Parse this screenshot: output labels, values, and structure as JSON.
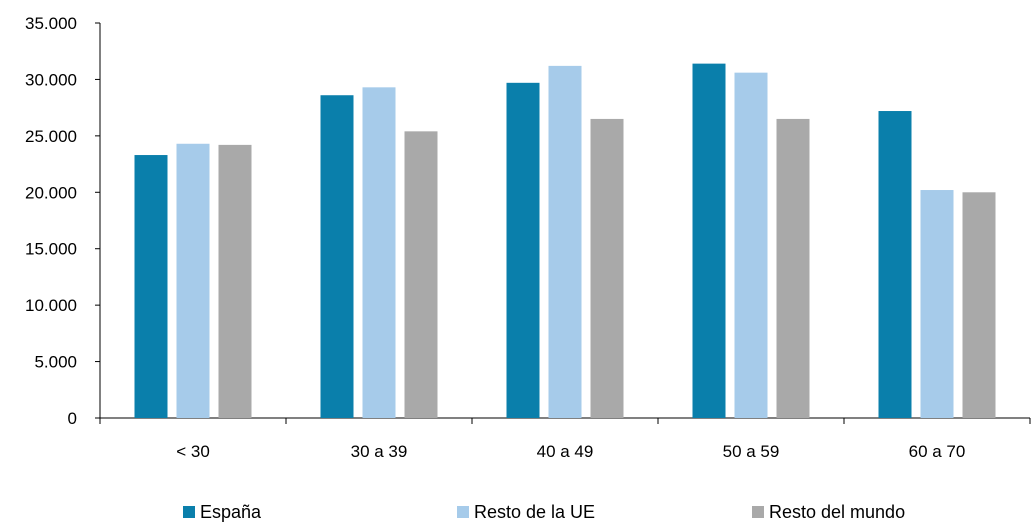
{
  "chart_data": {
    "type": "bar",
    "categories": [
      "< 30",
      "30 a 39",
      "40 a 49",
      "50 a 59",
      "60 a 70"
    ],
    "series": [
      {
        "name": "España",
        "color": "#0a7fab",
        "values": [
          23300,
          28600,
          29700,
          31400,
          27200
        ]
      },
      {
        "name": "Resto de la UE",
        "color": "#a6cbea",
        "values": [
          24300,
          29300,
          31200,
          30600,
          20200
        ]
      },
      {
        "name": "Resto del mundo",
        "color": "#a9a9a9",
        "values": [
          24200,
          25400,
          26500,
          26500,
          20000
        ]
      }
    ],
    "y_ticks": [
      "0",
      "5.000",
      "10.000",
      "15.000",
      "20.000",
      "25.000",
      "30.000",
      "35.000"
    ],
    "ylim": [
      0,
      35000
    ],
    "grid": false,
    "legend_position": "bottom",
    "title": "",
    "xlabel": "",
    "ylabel": ""
  }
}
